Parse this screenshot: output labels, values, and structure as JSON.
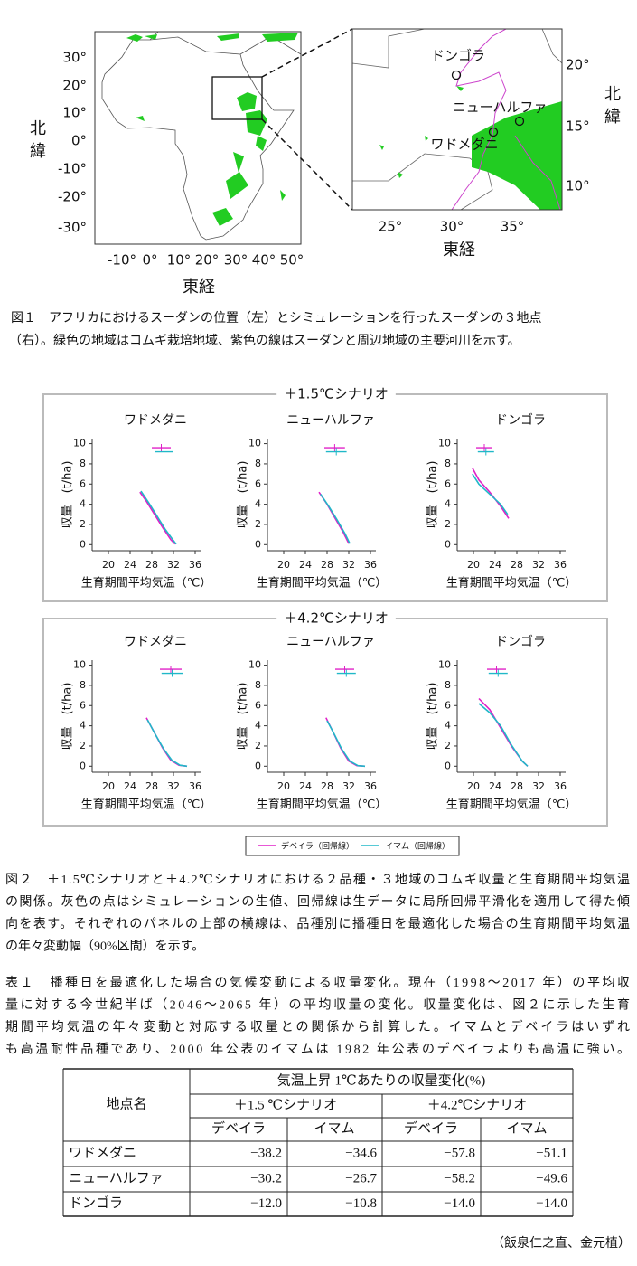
{
  "figure1": {
    "left_map": {
      "yticks": [
        "30°",
        "20°",
        "10°",
        "0°",
        "-10°",
        "-20°",
        "-30°"
      ],
      "xticks": [
        "-10°",
        "0°",
        "10°",
        "20°",
        "30°",
        "40°",
        "50°"
      ],
      "xlabel": "東経",
      "ylabel": [
        "北",
        "緯"
      ]
    },
    "right_map": {
      "yticks": [
        "20°",
        "15°",
        "10°"
      ],
      "xticks": [
        "25°",
        "30°",
        "35°"
      ],
      "xlabel": "東経",
      "ylabel": [
        "北",
        "緯"
      ],
      "places": [
        "ドンゴラ",
        "ニューハルファ",
        "ワドメダニ"
      ]
    },
    "caption": [
      "図１　アフリカにおけるスーダンの位置（左）とシミュレーションを行ったスーダンの３地点",
      "（右）。緑色の地域はコムギ栽培地域、紫色の線はスーダンと周辺地域の主要河川を示す。"
    ]
  },
  "figure2": {
    "xlim": [
      17,
      37
    ],
    "ylim": [
      -0.6,
      10.5
    ],
    "xticks": [
      20,
      24,
      28,
      32,
      36
    ],
    "yticks": [
      0,
      2,
      4,
      6,
      8,
      10
    ],
    "xlabel": "生育期間平均気温（℃）",
    "ylabel": "収量　(t/ha)",
    "legend": [
      {
        "label": "デベイラ（回帰線）",
        "color": "#e020c8"
      },
      {
        "label": "イマム（回帰線）",
        "color": "#20b8c8"
      }
    ],
    "scenarios": [
      {
        "title": "＋1.5℃シナリオ",
        "panels": [
          {
            "title": "ワドメダニ",
            "series": [
              {
                "x": [
                  25.8,
                  27,
                  28.5,
                  30,
                  31.5,
                  32.3
                ],
                "y": [
                  5.2,
                  4.3,
                  3.0,
                  1.7,
                  0.5,
                  0.05
                ]
              },
              {
                "x": [
                  26,
                  27.5,
                  29,
                  30.5,
                  32,
                  32.5
                ],
                "y": [
                  5.3,
                  4.1,
                  2.8,
                  1.5,
                  0.4,
                  0.05
                ]
              }
            ],
            "bars": [
              {
                "x": [
                  28,
                  31.5
                ],
                "y": 9.6
              },
              {
                "x": [
                  28.5,
                  32
                ],
                "y": 9.2
              }
            ]
          },
          {
            "title": "ニューハルファ",
            "series": [
              {
                "x": [
                  26.5,
                  28,
                  29.5,
                  31,
                  32
                ],
                "y": [
                  5.2,
                  4.0,
                  2.6,
                  1.2,
                  0.1
                ]
              },
              {
                "x": [
                  26.8,
                  28.3,
                  29.8,
                  31.3,
                  32.2
                ],
                "y": [
                  5.0,
                  3.8,
                  2.5,
                  1.1,
                  0.1
                ]
              }
            ],
            "bars": [
              {
                "x": [
                  27.5,
                  31.3
                ],
                "y": 9.6
              },
              {
                "x": [
                  27.8,
                  31.6
                ],
                "y": 9.2
              }
            ]
          },
          {
            "title": "ドンゴラ",
            "series": [
              {
                "x": [
                  19.8,
                  21,
                  23,
                  25,
                  26.5
                ],
                "y": [
                  7.6,
                  6.4,
                  5.2,
                  3.8,
                  2.6
                ]
              },
              {
                "x": [
                  19.8,
                  21,
                  23,
                  25,
                  26.3
                ],
                "y": [
                  7.0,
                  6.0,
                  5.0,
                  4.0,
                  3.0
                ]
              }
            ],
            "bars": [
              {
                "x": [
                  20.5,
                  23.5
                ],
                "y": 9.6
              },
              {
                "x": [
                  20.8,
                  23.8
                ],
                "y": 9.2
              }
            ]
          }
        ]
      },
      {
        "title": "＋4.2℃シナリオ",
        "panels": [
          {
            "title": "ワドメダニ",
            "series": [
              {
                "x": [
                  27,
                  28.5,
                  30,
                  31.5,
                  33,
                  34.5
                ],
                "y": [
                  4.8,
                  3.3,
                  1.8,
                  0.6,
                  0.1,
                  0
                ]
              },
              {
                "x": [
                  27.2,
                  28.7,
                  30.2,
                  31.7,
                  33.2,
                  34.5
                ],
                "y": [
                  4.6,
                  3.1,
                  1.7,
                  0.6,
                  0.1,
                  0
                ]
              }
            ],
            "bars": [
              {
                "x": [
                  29.5,
                  33.5
                ],
                "y": 9.6
              },
              {
                "x": [
                  29.8,
                  33.7
                ],
                "y": 9.2
              }
            ]
          },
          {
            "title": "ニューハルファ",
            "series": [
              {
                "x": [
                  27.8,
                  29,
                  30.5,
                  32,
                  33.5,
                  35
                ],
                "y": [
                  4.8,
                  3.5,
                  1.8,
                  0.5,
                  0.05,
                  0
                ]
              },
              {
                "x": [
                  28,
                  29.2,
                  30.7,
                  32.2,
                  33.7,
                  35
                ],
                "y": [
                  4.5,
                  3.3,
                  1.7,
                  0.5,
                  0.05,
                  0
                ]
              }
            ],
            "bars": [
              {
                "x": [
                  29.5,
                  33
                ],
                "y": 9.6
              },
              {
                "x": [
                  29.8,
                  33.3
                ],
                "y": 9.2
              }
            ]
          },
          {
            "title": "ドンゴラ",
            "series": [
              {
                "x": [
                  21,
                  23,
                  25,
                  27,
                  29,
                  30
                ],
                "y": [
                  6.7,
                  5.6,
                  3.8,
                  2.0,
                  0.5,
                  0
                ]
              },
              {
                "x": [
                  21,
                  23,
                  25,
                  27,
                  29,
                  30
                ],
                "y": [
                  6.2,
                  5.3,
                  4.0,
                  2.1,
                  0.5,
                  0
                ]
              }
            ],
            "bars": [
              {
                "x": [
                  22.5,
                  26
                ],
                "y": 9.6
              },
              {
                "x": [
                  22.8,
                  26.3
                ],
                "y": 9.2
              }
            ]
          }
        ]
      }
    ],
    "caption": [
      "図２　＋1.5℃シナリオと＋4.2℃シナリオにおける２品種・３地域のコムギ収量と生育期間平均気温",
      "の関係。灰色の点はシミュレーションの生値、回帰線は生データに局所回帰平滑化を適用して得た傾",
      "向を表す。それぞれのパネルの上部の横線は、品種別に播種日を最適化した場合の生育期間平均気温",
      "の年々変動幅（90%区間）を示す。"
    ]
  },
  "table1": {
    "caption": [
      "表１　播種日を最適化した場合の気候変動による収量変化。現在（1998～2017 年）の平均収",
      "量に対する今世紀半ば（2046～2065 年）の平均収量の変化。収量変化は、図２に示した生育",
      "期間平均気温の年々変動と対応する収量との関係から計算した。イマムとデベイラはいずれ",
      "も高温耐性品種であり、2000 年公表のイマムは 1982 年公表のデベイラよりも高温に強い。"
    ],
    "corner": "地点名",
    "group": "気温上昇 1℃あたりの収量変化(%)",
    "scenarios": [
      "＋1.5 ℃シナリオ",
      "＋4.2℃シナリオ"
    ],
    "cultivars": [
      "デベイラ",
      "イマム",
      "デベイラ",
      "イマム"
    ],
    "rows": [
      {
        "site": "ワドメダニ",
        "values": [
          {
            "value": -38.2,
            "label": "−38.2"
          },
          {
            "value": -34.6,
            "label": "−34.6"
          },
          {
            "value": -57.8,
            "label": "−57.8"
          },
          {
            "value": -51.1,
            "label": "−51.1"
          }
        ]
      },
      {
        "site": "ニューハルファ",
        "values": [
          {
            "value": -30.2,
            "label": "−30.2"
          },
          {
            "value": -26.7,
            "label": "−26.7"
          },
          {
            "value": -58.2,
            "label": "−58.2"
          },
          {
            "value": -49.6,
            "label": "−49.6"
          }
        ]
      },
      {
        "site": "ドンゴラ",
        "values": [
          {
            "value": -12.0,
            "label": "−12.0"
          },
          {
            "value": -10.8,
            "label": "−10.8"
          },
          {
            "value": -14.0,
            "label": "−14.0"
          },
          {
            "value": -14.0,
            "label": "−14.0"
          }
        ]
      }
    ]
  },
  "footer": "（飯泉仁之直、金元植）"
}
